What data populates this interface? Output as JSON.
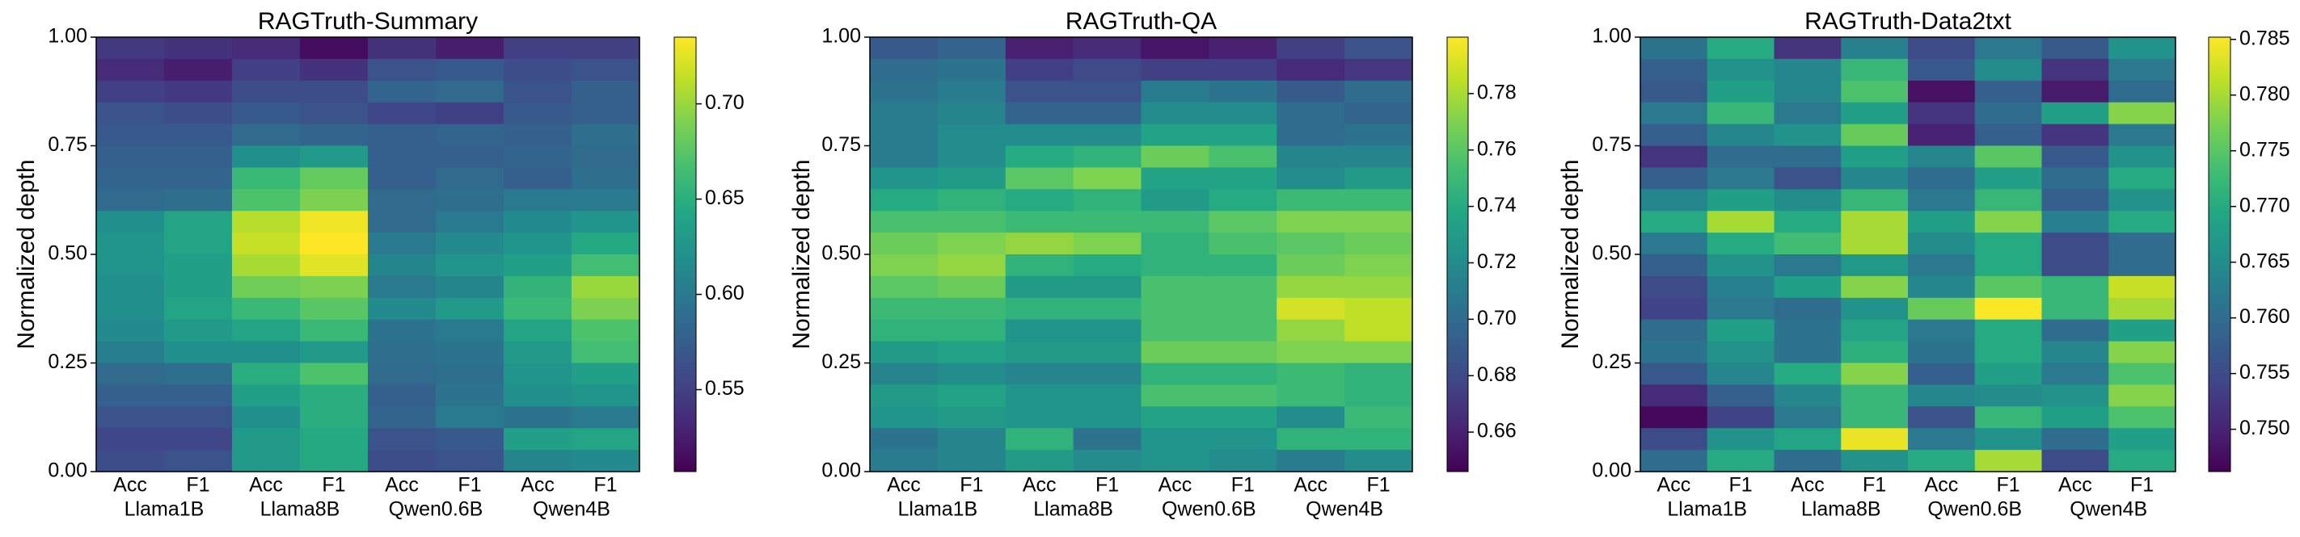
{
  "chart_data": [
    {
      "type": "heatmap",
      "title": "RAGTruth-Summary",
      "ylabel": "Normalized depth",
      "colormap": "viridis",
      "ylim": [
        0,
        1
      ],
      "yticks": [
        "0.00",
        "0.25",
        "0.50",
        "0.75",
        "1.00"
      ],
      "metrics": [
        "Acc",
        "F1",
        "Acc",
        "F1",
        "Acc",
        "F1",
        "Acc",
        "F1"
      ],
      "models": [
        "Llama1B",
        "Llama8B",
        "Qwen0.6B",
        "Qwen4B"
      ],
      "depth_bins_top_to_bottom": 20,
      "colorbar": {
        "range": [
          0.507,
          0.735
        ],
        "ticks": [
          "0.55",
          "0.60",
          "0.65",
          "0.70"
        ]
      },
      "values": [
        [
          0.545,
          0.535,
          0.55,
          0.565,
          0.57,
          0.575,
          0.58,
          0.585,
          0.62,
          0.625,
          0.625,
          0.62,
          0.62,
          0.615,
          0.605,
          0.585,
          0.575,
          0.565,
          0.555,
          0.56
        ],
        [
          0.54,
          0.525,
          0.545,
          0.56,
          0.57,
          0.575,
          0.58,
          0.59,
          0.64,
          0.64,
          0.635,
          0.635,
          0.64,
          0.63,
          0.62,
          0.59,
          0.575,
          0.565,
          0.555,
          0.565
        ],
        [
          0.535,
          0.55,
          0.56,
          0.57,
          0.585,
          0.62,
          0.66,
          0.67,
          0.71,
          0.715,
          0.705,
          0.685,
          0.66,
          0.64,
          0.62,
          0.65,
          0.635,
          0.62,
          0.63,
          0.63
        ],
        [
          0.515,
          0.54,
          0.56,
          0.565,
          0.58,
          0.63,
          0.68,
          0.69,
          0.73,
          0.735,
          0.725,
          0.69,
          0.675,
          0.66,
          0.63,
          0.67,
          0.65,
          0.65,
          0.645,
          0.645
        ],
        [
          0.54,
          0.565,
          0.58,
          0.555,
          0.575,
          0.575,
          0.575,
          0.585,
          0.585,
          0.6,
          0.61,
          0.6,
          0.615,
          0.595,
          0.59,
          0.585,
          0.575,
          0.58,
          0.565,
          0.56
        ],
        [
          0.525,
          0.57,
          0.585,
          0.55,
          0.58,
          0.575,
          0.585,
          0.59,
          0.6,
          0.615,
          0.625,
          0.61,
          0.63,
          0.6,
          0.595,
          0.59,
          0.595,
          0.6,
          0.57,
          0.565
        ],
        [
          0.55,
          0.56,
          0.565,
          0.57,
          0.575,
          0.58,
          0.575,
          0.6,
          0.615,
          0.625,
          0.635,
          0.655,
          0.66,
          0.64,
          0.63,
          0.625,
          0.62,
          0.595,
          0.635,
          0.61
        ],
        [
          0.55,
          0.565,
          0.575,
          0.575,
          0.59,
          0.585,
          0.59,
          0.6,
          0.625,
          0.645,
          0.665,
          0.7,
          0.69,
          0.67,
          0.665,
          0.635,
          0.625,
          0.6,
          0.64,
          0.615
        ]
      ]
    },
    {
      "type": "heatmap",
      "title": "RAGTruth-QA",
      "ylabel": "Normalized depth",
      "colormap": "viridis",
      "ylim": [
        0,
        1
      ],
      "yticks": [
        "0.00",
        "0.25",
        "0.50",
        "0.75",
        "1.00"
      ],
      "metrics": [
        "Acc",
        "F1",
        "Acc",
        "F1",
        "Acc",
        "F1",
        "Acc",
        "F1"
      ],
      "models": [
        "Llama1B",
        "Llama8B",
        "Qwen0.6B",
        "Qwen4B"
      ],
      "depth_bins_top_to_bottom": 20,
      "colorbar": {
        "range": [
          0.646,
          0.8
        ],
        "ticks": [
          "0.66",
          "0.68",
          "0.70",
          "0.72",
          "0.74",
          "0.76",
          "0.78"
        ]
      },
      "values": [
        [
          0.69,
          0.7,
          0.705,
          0.71,
          0.71,
          0.71,
          0.725,
          0.74,
          0.755,
          0.765,
          0.77,
          0.76,
          0.75,
          0.745,
          0.73,
          0.715,
          0.73,
          0.725,
          0.705,
          0.71
        ],
        [
          0.695,
          0.705,
          0.71,
          0.715,
          0.72,
          0.72,
          0.73,
          0.745,
          0.755,
          0.77,
          0.775,
          0.765,
          0.75,
          0.745,
          0.735,
          0.72,
          0.735,
          0.73,
          0.715,
          0.715
        ],
        [
          0.66,
          0.675,
          0.685,
          0.695,
          0.72,
          0.74,
          0.76,
          0.74,
          0.75,
          0.775,
          0.745,
          0.73,
          0.745,
          0.725,
          0.73,
          0.715,
          0.725,
          0.725,
          0.745,
          0.73
        ],
        [
          0.665,
          0.68,
          0.685,
          0.695,
          0.72,
          0.745,
          0.77,
          0.745,
          0.75,
          0.77,
          0.74,
          0.73,
          0.745,
          0.725,
          0.73,
          0.715,
          0.725,
          0.725,
          0.705,
          0.72
        ],
        [
          0.655,
          0.675,
          0.71,
          0.72,
          0.735,
          0.765,
          0.735,
          0.73,
          0.75,
          0.745,
          0.745,
          0.755,
          0.755,
          0.755,
          0.765,
          0.745,
          0.755,
          0.735,
          0.725,
          0.725
        ],
        [
          0.66,
          0.675,
          0.705,
          0.72,
          0.735,
          0.755,
          0.735,
          0.74,
          0.76,
          0.755,
          0.745,
          0.755,
          0.755,
          0.755,
          0.765,
          0.745,
          0.755,
          0.735,
          0.725,
          0.72
        ],
        [
          0.675,
          0.665,
          0.69,
          0.7,
          0.7,
          0.715,
          0.72,
          0.75,
          0.77,
          0.76,
          0.765,
          0.775,
          0.79,
          0.775,
          0.77,
          0.75,
          0.75,
          0.72,
          0.745,
          0.71
        ],
        [
          0.685,
          0.67,
          0.7,
          0.695,
          0.705,
          0.715,
          0.73,
          0.75,
          0.77,
          0.765,
          0.77,
          0.775,
          0.785,
          0.785,
          0.77,
          0.745,
          0.745,
          0.75,
          0.745,
          0.72
        ]
      ]
    },
    {
      "type": "heatmap",
      "title": "RAGTruth-Data2txt",
      "ylabel": "Normalized depth",
      "colormap": "viridis",
      "ylim": [
        0,
        1
      ],
      "yticks": [
        "0.00",
        "0.25",
        "0.50",
        "0.75",
        "1.00"
      ],
      "metrics": [
        "Acc",
        "F1",
        "Acc",
        "F1",
        "Acc",
        "F1",
        "Acc",
        "F1"
      ],
      "models": [
        "Llama1B",
        "Llama8B",
        "Qwen0.6B",
        "Qwen4B"
      ],
      "depth_bins_top_to_bottom": 20,
      "colorbar": {
        "range": [
          0.7462,
          0.7852
        ],
        "ticks": [
          "0.750",
          "0.755",
          "0.760",
          "0.765",
          "0.770",
          "0.775",
          "0.780",
          "0.785"
        ]
      },
      "values": [
        [
          0.761,
          0.758,
          0.757,
          0.762,
          0.758,
          0.752,
          0.758,
          0.764,
          0.77,
          0.762,
          0.758,
          0.755,
          0.754,
          0.76,
          0.761,
          0.757,
          0.751,
          0.747,
          0.755,
          0.76
        ],
        [
          0.77,
          0.766,
          0.768,
          0.772,
          0.764,
          0.76,
          0.762,
          0.768,
          0.78,
          0.77,
          0.766,
          0.763,
          0.762,
          0.768,
          0.766,
          0.764,
          0.758,
          0.754,
          0.766,
          0.77
        ],
        [
          0.752,
          0.764,
          0.764,
          0.762,
          0.766,
          0.76,
          0.756,
          0.765,
          0.77,
          0.773,
          0.762,
          0.768,
          0.76,
          0.761,
          0.761,
          0.77,
          0.764,
          0.762,
          0.769,
          0.76
        ],
        [
          0.763,
          0.772,
          0.774,
          0.768,
          0.776,
          0.768,
          0.764,
          0.772,
          0.78,
          0.78,
          0.767,
          0.778,
          0.766,
          0.769,
          0.771,
          0.778,
          0.772,
          0.772,
          0.784,
          0.766
        ],
        [
          0.755,
          0.757,
          0.748,
          0.752,
          0.75,
          0.764,
          0.76,
          0.762,
          0.768,
          0.765,
          0.762,
          0.764,
          0.776,
          0.762,
          0.761,
          0.758,
          0.764,
          0.756,
          0.762,
          0.77
        ],
        [
          0.762,
          0.765,
          0.758,
          0.76,
          0.758,
          0.775,
          0.768,
          0.772,
          0.778,
          0.77,
          0.77,
          0.775,
          0.785,
          0.77,
          0.77,
          0.768,
          0.765,
          0.772,
          0.766,
          0.78
        ],
        [
          0.757,
          0.752,
          0.749,
          0.768,
          0.752,
          0.757,
          0.76,
          0.758,
          0.763,
          0.755,
          0.755,
          0.772,
          0.772,
          0.76,
          0.764,
          0.762,
          0.766,
          0.768,
          0.76,
          0.755
        ],
        [
          0.766,
          0.762,
          0.76,
          0.778,
          0.762,
          0.766,
          0.77,
          0.766,
          0.77,
          0.76,
          0.76,
          0.782,
          0.78,
          0.768,
          0.778,
          0.774,
          0.778,
          0.774,
          0.768,
          0.77
        ]
      ]
    }
  ]
}
